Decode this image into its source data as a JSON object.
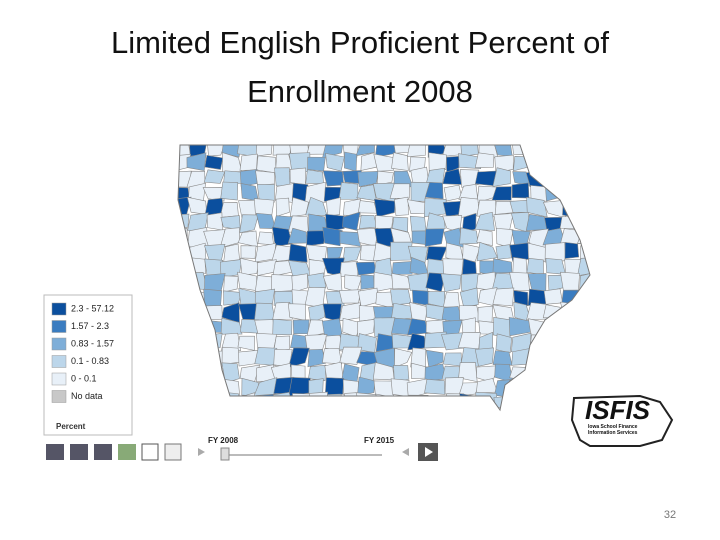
{
  "title_lines": [
    "Limited English Proficient Percent of",
    "Enrollment 2008"
  ],
  "legend": {
    "items": [
      {
        "label": "2.3 - 57.12",
        "color": "#0b4f9e"
      },
      {
        "label": "1.57 - 2.3",
        "color": "#3a7cc0"
      },
      {
        "label": "0.83 - 1.57",
        "color": "#7eaed8"
      },
      {
        "label": "0.1 - 0.83",
        "color": "#bcd6ea"
      },
      {
        "label": "0 - 0.1",
        "color": "#e8f0f8"
      },
      {
        "label": "No data",
        "color": "#c8c8c8"
      }
    ],
    "title": "Percent"
  },
  "timeline": {
    "start": "FY 2008",
    "end": "FY 2015"
  },
  "logo": {
    "name": "ISFIS",
    "subtitle": "Iowa School Finance Information Services"
  },
  "page_number": "32"
}
